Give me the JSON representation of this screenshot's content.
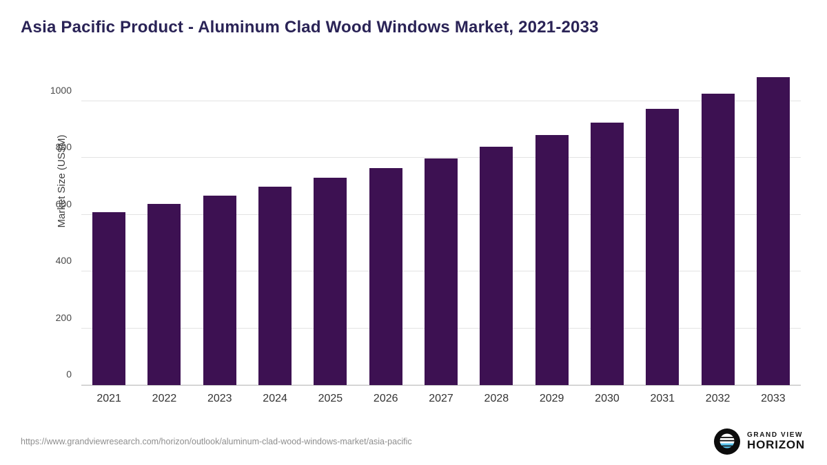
{
  "title": "Asia Pacific Product - Aluminum Clad Wood Windows Market, 2021-2033",
  "chart_data": {
    "type": "bar",
    "categories": [
      "2021",
      "2022",
      "2023",
      "2024",
      "2025",
      "2026",
      "2027",
      "2028",
      "2029",
      "2030",
      "2031",
      "2032",
      "2033"
    ],
    "values": [
      610,
      639,
      667,
      699,
      730,
      764,
      798,
      839,
      880,
      925,
      973,
      1027,
      1084
    ],
    "title": "Asia Pacific Product - Aluminum Clad Wood Windows Market, 2021-2033",
    "xlabel": "",
    "ylabel": "Market Size (US$M)",
    "ylim": [
      0,
      1150
    ],
    "yticks": [
      0,
      200,
      400,
      600,
      800,
      1000
    ],
    "grid": true,
    "legend_position": "none",
    "bar_color": "#3d1152"
  },
  "colors": {
    "bar": "#3d1152",
    "title": "#2a2356",
    "gridline": "#e3e3e3",
    "axis_text": "#4a4a4a",
    "logo_blue": "#5bc6ef"
  },
  "footer": {
    "source_url": "https://www.grandviewresearch.com/horizon/outlook/aluminum-clad-wood-windows-market/asia-pacific",
    "logo_line1": "GRAND VIEW",
    "logo_line2": "HORIZON"
  }
}
